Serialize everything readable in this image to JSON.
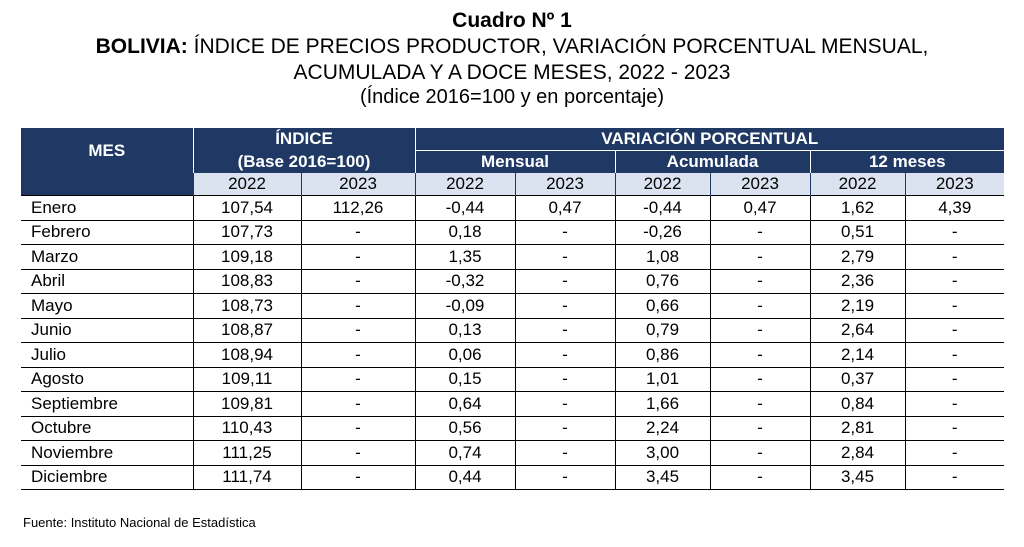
{
  "title": "Cuadro Nº 1",
  "subtitle_bold": "BOLIVIA:",
  "subtitle_rest": " ÍNDICE DE PRECIOS PRODUCTOR, VARIACIÓN PORCENTUAL MENSUAL,",
  "subtitle_line2": "ACUMULADA Y A DOCE MESES, 2022 - 2023",
  "subtitle_line3": "(Índice 2016=100 y en porcentaje)",
  "header": {
    "mes": "MES",
    "indice": "ÍNDICE",
    "indice_base": "(Base 2016=100)",
    "variacion": "VARIACIÓN PORCENTUAL",
    "mensual": "Mensual",
    "acumulada": "Acumulada",
    "doce": "12 meses",
    "y2022": "2022",
    "y2023": "2023"
  },
  "rows": [
    {
      "mes": "Enero",
      "i22": "107,54",
      "i23": "112,26",
      "m22": "-0,44",
      "m23": "0,47",
      "a22": "-0,44",
      "a23": "0,47",
      "d22": "1,62",
      "d23": "4,39"
    },
    {
      "mes": "Febrero",
      "i22": "107,73",
      "i23": "-",
      "m22": "0,18",
      "m23": "-",
      "a22": "-0,26",
      "a23": "-",
      "d22": "0,51",
      "d23": "-"
    },
    {
      "mes": "Marzo",
      "i22": "109,18",
      "i23": "-",
      "m22": "1,35",
      "m23": "-",
      "a22": "1,08",
      "a23": "-",
      "d22": "2,79",
      "d23": "-"
    },
    {
      "mes": "Abril",
      "i22": "108,83",
      "i23": "-",
      "m22": "-0,32",
      "m23": "-",
      "a22": "0,76",
      "a23": "-",
      "d22": "2,36",
      "d23": "-"
    },
    {
      "mes": "Mayo",
      "i22": "108,73",
      "i23": "-",
      "m22": "-0,09",
      "m23": "-",
      "a22": "0,66",
      "a23": "-",
      "d22": "2,19",
      "d23": "-"
    },
    {
      "mes": "Junio",
      "i22": "108,87",
      "i23": "-",
      "m22": "0,13",
      "m23": "-",
      "a22": "0,79",
      "a23": "-",
      "d22": "2,64",
      "d23": "-"
    },
    {
      "mes": "Julio",
      "i22": "108,94",
      "i23": "-",
      "m22": "0,06",
      "m23": "-",
      "a22": "0,86",
      "a23": "-",
      "d22": "2,14",
      "d23": "-"
    },
    {
      "mes": "Agosto",
      "i22": "109,11",
      "i23": "-",
      "m22": "0,15",
      "m23": "-",
      "a22": "1,01",
      "a23": "-",
      "d22": "0,37",
      "d23": "-"
    },
    {
      "mes": "Septiembre",
      "i22": "109,81",
      "i23": "-",
      "m22": "0,64",
      "m23": "-",
      "a22": "1,66",
      "a23": "-",
      "d22": "0,84",
      "d23": "-"
    },
    {
      "mes": "Octubre",
      "i22": "110,43",
      "i23": "-",
      "m22": "0,56",
      "m23": "-",
      "a22": "2,24",
      "a23": "-",
      "d22": "2,81",
      "d23": "-"
    },
    {
      "mes": "Noviembre",
      "i22": "111,25",
      "i23": "-",
      "m22": "0,74",
      "m23": "-",
      "a22": "3,00",
      "a23": "-",
      "d22": "2,84",
      "d23": "-"
    },
    {
      "mes": "Diciembre",
      "i22": "111,74",
      "i23": "-",
      "m22": "0,44",
      "m23": "-",
      "a22": "3,45",
      "a23": "-",
      "d22": "3,45",
      "d23": "-"
    }
  ],
  "source": "Fuente: Instituto Nacional de Estadística",
  "colors": {
    "header_bg": "#1f3864",
    "year_bg": "#dbe3f0"
  }
}
